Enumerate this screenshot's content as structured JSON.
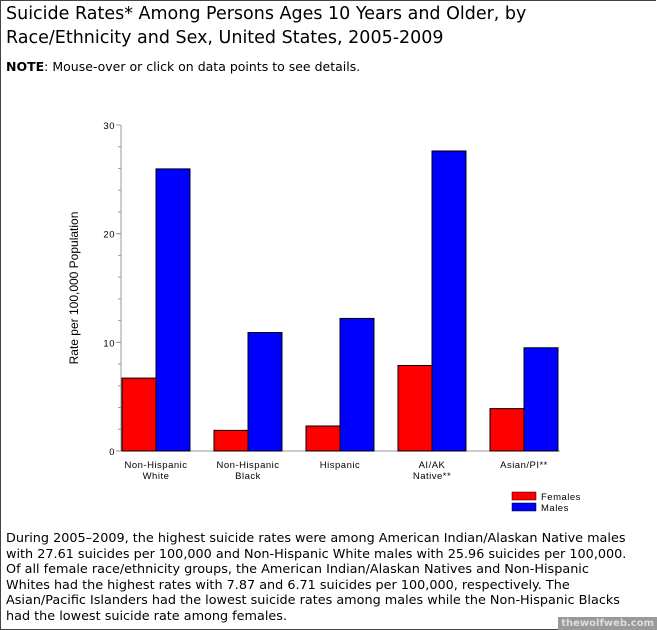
{
  "title": "Suicide Rates* Among Persons Ages 10 Years and Older, by Race/Ethnicity and Sex, United States, 2005-2009",
  "note": {
    "bold": "NOTE",
    "text": ": Mouse-over or click on data points to see details."
  },
  "description": "During 2005–2009, the highest suicide rates were among American Indian/Alaskan Native males with 27.61 suicides per 100,000 and Non-Hispanic White males with 25.96 suicides per 100,000. Of all female race/ethnicity groups, the American Indian/Alaskan Natives and Non-Hispanic Whites had the highest rates with 7.87 and 6.71 suicides per 100,000, respectively. The Asian/Pacific Islanders had the lowest suicide rates among males while the Non-Hispanic Blacks had the lowest suicide rate among females.",
  "watermark": "thewolfweb.com",
  "chart_data": {
    "type": "bar",
    "title": "",
    "xlabel": "",
    "ylabel": "Rate per 100,000 Population",
    "ylim": [
      0,
      30
    ],
    "yticks": [
      0,
      10,
      20,
      30
    ],
    "categories": [
      [
        "Non-Hispanic",
        "White"
      ],
      [
        "Non-Hispanic",
        "Black"
      ],
      [
        "Hispanic"
      ],
      [
        "AI/AK",
        "Native**"
      ],
      [
        "Asian/PI**"
      ]
    ],
    "series": [
      {
        "name": "Females",
        "color": "#ff0000",
        "values": [
          6.71,
          1.9,
          2.3,
          7.87,
          3.9
        ]
      },
      {
        "name": "Males",
        "color": "#0000ff",
        "values": [
          25.96,
          10.9,
          12.2,
          27.61,
          9.5
        ]
      }
    ],
    "legend": "bottom-right",
    "grid": false
  }
}
